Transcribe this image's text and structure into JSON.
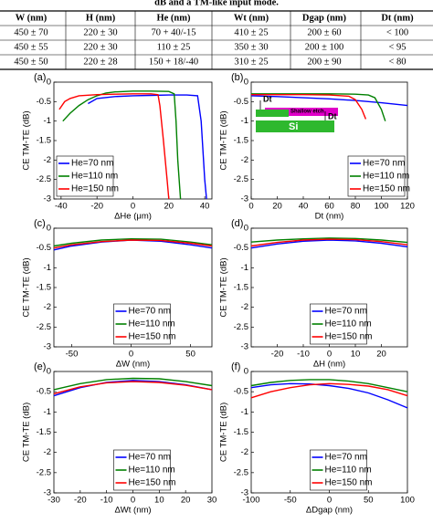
{
  "caption": "dB and a TM-like input mode.",
  "table": {
    "header": [
      "W (nm)",
      "H (nm)",
      "He (nm)",
      "Wt (nm)",
      "Dgap (nm)",
      "Dt (nm)"
    ],
    "rows": [
      [
        "450 ± 70",
        "220 ± 30",
        "70 + 40/-15",
        "410 ± 25",
        "200 ± 60",
        "< 100"
      ],
      [
        "450 ± 55",
        "220 ± 30",
        "110 ± 25",
        "350 ± 30",
        "200 ± 100",
        "< 95"
      ],
      [
        "450 ± 50",
        "220 ± 28",
        "150 + 18/-40",
        "310 ± 25",
        "200 ± 90",
        "< 80"
      ]
    ]
  },
  "chart_data": [
    {
      "type": "line",
      "label": "(a)",
      "xlabel": "ΔHe (μm)",
      "ylabel": "CE TM-TE (dB)",
      "xlim": [
        -44,
        44
      ],
      "xticks": [
        -40,
        -20,
        0,
        20,
        40
      ],
      "ylim": [
        -3,
        0
      ],
      "yticks": [
        -3,
        -2.5,
        -2,
        -1.5,
        -1,
        -0.5,
        0
      ],
      "legend": "lower left",
      "series": [
        {
          "name": "He=70 nm",
          "color": "#0000ff",
          "x": [
            -25,
            -20,
            -10,
            0,
            10,
            20,
            30,
            36,
            38,
            40,
            41
          ],
          "values": [
            -0.55,
            -0.42,
            -0.37,
            -0.35,
            -0.34,
            -0.33,
            -0.33,
            -0.35,
            -1.0,
            -2.5,
            -3
          ]
        },
        {
          "name": "He=110 nm",
          "color": "#008000",
          "x": [
            -39,
            -35,
            -30,
            -25,
            -20,
            -15,
            -10,
            0,
            10,
            20,
            23,
            24,
            25,
            26.5
          ],
          "values": [
            -1.0,
            -0.8,
            -0.6,
            -0.45,
            -0.35,
            -0.28,
            -0.25,
            -0.23,
            -0.23,
            -0.24,
            -0.3,
            -1.0,
            -2.0,
            -3
          ]
        },
        {
          "name": "He=150 nm",
          "color": "#ff0000",
          "x": [
            -41,
            -38,
            -35,
            -30,
            -20,
            -10,
            0,
            10,
            14,
            15,
            17,
            19,
            20
          ],
          "values": [
            -0.7,
            -0.5,
            -0.42,
            -0.35,
            -0.32,
            -0.31,
            -0.3,
            -0.3,
            -0.32,
            -0.6,
            -1.5,
            -2.5,
            -3
          ]
        }
      ]
    },
    {
      "type": "line",
      "label": "(b)",
      "xlabel": "Dt (nm)",
      "ylabel": "CE TM-TE (dB)",
      "xlim": [
        0,
        120
      ],
      "xticks": [
        0,
        20,
        40,
        60,
        80,
        100,
        120
      ],
      "ylim": [
        -3,
        0
      ],
      "yticks": [
        -3,
        -2.5,
        -2,
        -1.5,
        -1,
        -0.5,
        0
      ],
      "legend": "lower right",
      "annotations": [
        "Dt",
        "Shallow etch",
        "Dt",
        "Si"
      ],
      "series": [
        {
          "name": "He=70 nm",
          "color": "#0000ff",
          "x": [
            0,
            20,
            40,
            60,
            80,
            100,
            120
          ],
          "values": [
            -0.35,
            -0.37,
            -0.4,
            -0.43,
            -0.47,
            -0.53,
            -0.6
          ]
        },
        {
          "name": "He=110 nm",
          "color": "#008000",
          "x": [
            0,
            20,
            40,
            60,
            80,
            90,
            95,
            100,
            103
          ],
          "values": [
            -0.3,
            -0.3,
            -0.3,
            -0.3,
            -0.31,
            -0.33,
            -0.4,
            -0.7,
            -1.0
          ]
        },
        {
          "name": "He=150 nm",
          "color": "#ff0000",
          "x": [
            0,
            20,
            40,
            60,
            75,
            80,
            85,
            88
          ],
          "values": [
            -0.32,
            -0.32,
            -0.32,
            -0.33,
            -0.36,
            -0.45,
            -0.7,
            -0.95
          ]
        }
      ]
    },
    {
      "type": "line",
      "label": "(c)",
      "xlabel": "ΔW (nm)",
      "ylabel": "CE TM-TE (dB)",
      "xlim": [
        -65,
        68
      ],
      "xticks": [
        -50,
        0,
        50
      ],
      "ylim": [
        -3,
        0
      ],
      "yticks": [
        -3,
        -2.5,
        -2,
        -1.5,
        -1,
        -0.5,
        0
      ],
      "legend": "lower center",
      "series": [
        {
          "name": "He=70 nm",
          "color": "#0000ff",
          "x": [
            -65,
            -50,
            -25,
            0,
            25,
            50,
            68
          ],
          "values": [
            -0.55,
            -0.45,
            -0.35,
            -0.3,
            -0.33,
            -0.42,
            -0.5
          ]
        },
        {
          "name": "He=110 nm",
          "color": "#008000",
          "x": [
            -65,
            -50,
            -25,
            0,
            25,
            50,
            68
          ],
          "values": [
            -0.45,
            -0.38,
            -0.3,
            -0.27,
            -0.28,
            -0.35,
            -0.42
          ]
        },
        {
          "name": "He=150 nm",
          "color": "#ff0000",
          "x": [
            -65,
            -50,
            -25,
            0,
            25,
            50,
            68
          ],
          "values": [
            -0.5,
            -0.42,
            -0.34,
            -0.3,
            -0.31,
            -0.38,
            -0.45
          ]
        }
      ]
    },
    {
      "type": "line",
      "label": "(d)",
      "xlabel": "ΔH (nm)",
      "ylabel": "CE TM-TE (dB)",
      "xlim": [
        -30,
        30
      ],
      "xticks": [
        -20,
        -10,
        0,
        10,
        20
      ],
      "ylim": [
        -3,
        0
      ],
      "yticks": [
        -3,
        -2.5,
        -2,
        -1.5,
        -1,
        -0.5,
        0
      ],
      "legend": "lower center",
      "series": [
        {
          "name": "He=70 nm",
          "color": "#0000ff",
          "x": [
            -30,
            -20,
            -10,
            0,
            10,
            20,
            30
          ],
          "values": [
            -0.5,
            -0.4,
            -0.33,
            -0.3,
            -0.32,
            -0.38,
            -0.47
          ]
        },
        {
          "name": "He=110 nm",
          "color": "#008000",
          "x": [
            -30,
            -20,
            -10,
            0,
            10,
            20,
            30
          ],
          "values": [
            -0.35,
            -0.3,
            -0.27,
            -0.25,
            -0.26,
            -0.3,
            -0.36
          ]
        },
        {
          "name": "He=150 nm",
          "color": "#ff0000",
          "x": [
            -30,
            -20,
            -10,
            0,
            10,
            20,
            30
          ],
          "values": [
            -0.45,
            -0.36,
            -0.3,
            -0.28,
            -0.29,
            -0.34,
            -0.42
          ]
        }
      ]
    },
    {
      "type": "line",
      "label": "(e)",
      "xlabel": "ΔWt (nm)",
      "ylabel": "CE TM-TE (dB)",
      "xlim": [
        -30,
        30
      ],
      "xticks": [
        -30,
        -20,
        -10,
        0,
        10,
        20,
        30
      ],
      "ylim": [
        -3,
        0
      ],
      "yticks": [
        -3,
        -2.5,
        -2,
        -1.5,
        -1,
        -0.5,
        0
      ],
      "legend": "lower center",
      "series": [
        {
          "name": "He=70 nm",
          "color": "#0000ff",
          "x": [
            -30,
            -20,
            -10,
            0,
            10,
            20,
            30
          ],
          "values": [
            -0.6,
            -0.4,
            -0.27,
            -0.22,
            -0.25,
            -0.33,
            -0.45
          ]
        },
        {
          "name": "He=110 nm",
          "color": "#008000",
          "x": [
            -30,
            -20,
            -10,
            0,
            10,
            20,
            30
          ],
          "values": [
            -0.45,
            -0.3,
            -0.2,
            -0.17,
            -0.18,
            -0.25,
            -0.35
          ]
        },
        {
          "name": "He=150 nm",
          "color": "#ff0000",
          "x": [
            -30,
            -20,
            -10,
            0,
            10,
            20,
            30
          ],
          "values": [
            -0.55,
            -0.38,
            -0.28,
            -0.25,
            -0.27,
            -0.34,
            -0.45
          ]
        }
      ]
    },
    {
      "type": "line",
      "label": "(f)",
      "xlabel": "ΔDgap (nm)",
      "ylabel": "CE TM-TE (dB)",
      "xlim": [
        -100,
        100
      ],
      "xticks": [
        -100,
        -50,
        0,
        50,
        100
      ],
      "ylim": [
        -3,
        0
      ],
      "yticks": [
        -3,
        -2.5,
        -2,
        -1.5,
        -1,
        -0.5,
        0
      ],
      "legend": "lower center",
      "series": [
        {
          "name": "He=70 nm",
          "color": "#0000ff",
          "x": [
            -100,
            -75,
            -50,
            -25,
            0,
            25,
            50,
            75,
            100
          ],
          "values": [
            -0.4,
            -0.33,
            -0.3,
            -0.31,
            -0.35,
            -0.42,
            -0.53,
            -0.7,
            -0.9
          ]
        },
        {
          "name": "He=110 nm",
          "color": "#008000",
          "x": [
            -100,
            -75,
            -50,
            -25,
            0,
            25,
            50,
            75,
            100
          ],
          "values": [
            -0.35,
            -0.27,
            -0.22,
            -0.2,
            -0.2,
            -0.24,
            -0.3,
            -0.4,
            -0.5
          ]
        },
        {
          "name": "He=150 nm",
          "color": "#ff0000",
          "x": [
            -100,
            -75,
            -50,
            -25,
            0,
            25,
            50,
            75,
            100
          ],
          "values": [
            -0.65,
            -0.5,
            -0.4,
            -0.33,
            -0.3,
            -0.32,
            -0.36,
            -0.45,
            -0.6
          ]
        }
      ]
    }
  ]
}
